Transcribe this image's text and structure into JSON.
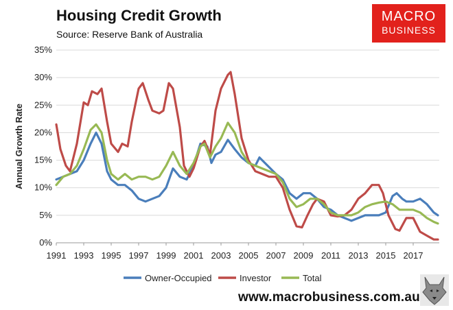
{
  "header": {
    "title": "Housing Credit Growth",
    "subtitle": "Source: Reserve Bank of Australia"
  },
  "brand": {
    "line1": "MACRO",
    "line2": "BUSINESS",
    "color": "#e2211c"
  },
  "footer": {
    "url": "www.macrobusiness.com.au",
    "icon": "wolf-icon"
  },
  "chart_data": {
    "type": "line",
    "title": "Housing Credit Growth",
    "ylabel": "Annual Growth Rate",
    "xlabel": "",
    "xlim": [
      1991,
      2018.9
    ],
    "ylim": [
      0,
      35
    ],
    "x_ticks": [
      1991,
      1993,
      1995,
      1997,
      1999,
      2001,
      2003,
      2005,
      2007,
      2009,
      2011,
      2013,
      2015,
      2017
    ],
    "x_tick_labels": [
      "1991",
      "1993",
      "1995",
      "1997",
      "1999",
      "2001",
      "2003",
      "2005",
      "2007",
      "2009",
      "2011",
      "2013",
      "2015",
      "2017"
    ],
    "y_ticks": [
      0,
      5,
      10,
      15,
      20,
      25,
      30,
      35
    ],
    "y_tick_labels": [
      "0%",
      "5%",
      "10%",
      "15%",
      "20%",
      "25%",
      "30%",
      "35%"
    ],
    "grid": "horizontal",
    "legend": "bottom",
    "series": [
      {
        "name": "Owner-Occupied",
        "color": "#4a7ebb",
        "points": [
          [
            1991,
            11.5
          ],
          [
            1991.5,
            12
          ],
          [
            1992,
            12.5
          ],
          [
            1992.5,
            13
          ],
          [
            1993,
            15
          ],
          [
            1993.5,
            18
          ],
          [
            1993.9,
            20
          ],
          [
            1994.3,
            18
          ],
          [
            1994.7,
            13
          ],
          [
            1995,
            11.5
          ],
          [
            1995.5,
            10.5
          ],
          [
            1996,
            10.5
          ],
          [
            1996.5,
            9.5
          ],
          [
            1997,
            8
          ],
          [
            1997.5,
            7.5
          ],
          [
            1998,
            8
          ],
          [
            1998.5,
            8.5
          ],
          [
            1999,
            10
          ],
          [
            1999.5,
            13.5
          ],
          [
            2000,
            12
          ],
          [
            2000.5,
            11.5
          ],
          [
            2001,
            14
          ],
          [
            2001.5,
            18
          ],
          [
            2002,
            17.5
          ],
          [
            2002.3,
            14.5
          ],
          [
            2002.6,
            16
          ],
          [
            2003,
            16.5
          ],
          [
            2003.5,
            18.7
          ],
          [
            2004,
            17
          ],
          [
            2004.5,
            15.5
          ],
          [
            2005,
            14.5
          ],
          [
            2005.5,
            14
          ],
          [
            2005.8,
            15.5
          ],
          [
            2006.2,
            14.5
          ],
          [
            2006.6,
            13.5
          ],
          [
            2007,
            12.5
          ],
          [
            2007.5,
            11.5
          ],
          [
            2008,
            9
          ],
          [
            2008.5,
            8
          ],
          [
            2009,
            9
          ],
          [
            2009.5,
            9
          ],
          [
            2010,
            8
          ],
          [
            2010.5,
            6.5
          ],
          [
            2011,
            6
          ],
          [
            2011.5,
            5
          ],
          [
            2012,
            4.5
          ],
          [
            2012.5,
            4
          ],
          [
            2013,
            4.5
          ],
          [
            2013.5,
            5
          ],
          [
            2014,
            5
          ],
          [
            2014.5,
            5
          ],
          [
            2015,
            5.5
          ],
          [
            2015.5,
            8.5
          ],
          [
            2015.8,
            9
          ],
          [
            2016.2,
            8
          ],
          [
            2016.5,
            7.5
          ],
          [
            2017,
            7.5
          ],
          [
            2017.5,
            8
          ],
          [
            2018,
            7
          ],
          [
            2018.5,
            5.5
          ],
          [
            2018.8,
            5
          ]
        ]
      },
      {
        "name": "Investor",
        "color": "#be4b48",
        "points": [
          [
            1991,
            21.5
          ],
          [
            1991.3,
            17
          ],
          [
            1991.7,
            14
          ],
          [
            1992,
            13
          ],
          [
            1992.5,
            18
          ],
          [
            1993,
            25.5
          ],
          [
            1993.3,
            25
          ],
          [
            1993.6,
            27.5
          ],
          [
            1994,
            27
          ],
          [
            1994.3,
            28
          ],
          [
            1994.7,
            22
          ],
          [
            1995,
            18
          ],
          [
            1995.5,
            16.5
          ],
          [
            1995.8,
            18
          ],
          [
            1996.2,
            17.5
          ],
          [
            1996.5,
            22
          ],
          [
            1997,
            28
          ],
          [
            1997.3,
            29
          ],
          [
            1997.7,
            26
          ],
          [
            1998,
            24
          ],
          [
            1998.5,
            23.5
          ],
          [
            1998.8,
            24
          ],
          [
            1999.2,
            29
          ],
          [
            1999.5,
            28
          ],
          [
            2000,
            21
          ],
          [
            2000.3,
            14
          ],
          [
            2000.7,
            12
          ],
          [
            2001,
            13.5
          ],
          [
            2001.5,
            17.5
          ],
          [
            2001.8,
            18.5
          ],
          [
            2002.2,
            16
          ],
          [
            2002.6,
            24
          ],
          [
            2003,
            28
          ],
          [
            2003.5,
            30.5
          ],
          [
            2003.7,
            31
          ],
          [
            2004,
            27
          ],
          [
            2004.5,
            19
          ],
          [
            2005,
            15
          ],
          [
            2005.5,
            13
          ],
          [
            2006,
            12.5
          ],
          [
            2006.5,
            12
          ],
          [
            2007,
            12
          ],
          [
            2007.5,
            10
          ],
          [
            2008,
            6
          ],
          [
            2008.5,
            3
          ],
          [
            2008.9,
            2.8
          ],
          [
            2009.3,
            5
          ],
          [
            2009.7,
            7
          ],
          [
            2010,
            8
          ],
          [
            2010.5,
            7.5
          ],
          [
            2011,
            5
          ],
          [
            2011.5,
            4.8
          ],
          [
            2012,
            5
          ],
          [
            2012.5,
            6
          ],
          [
            2013,
            8
          ],
          [
            2013.5,
            9
          ],
          [
            2014,
            10.5
          ],
          [
            2014.5,
            10.5
          ],
          [
            2014.8,
            9
          ],
          [
            2015.2,
            5
          ],
          [
            2015.7,
            2.5
          ],
          [
            2016,
            2.2
          ],
          [
            2016.5,
            4.5
          ],
          [
            2017,
            4.5
          ],
          [
            2017.5,
            2
          ],
          [
            2018,
            1.3
          ],
          [
            2018.5,
            0.6
          ],
          [
            2018.8,
            0.6
          ]
        ]
      },
      {
        "name": "Total",
        "color": "#98b954",
        "points": [
          [
            1991,
            10.5
          ],
          [
            1991.5,
            12
          ],
          [
            1992,
            12.5
          ],
          [
            1992.5,
            14
          ],
          [
            1993,
            17
          ],
          [
            1993.5,
            20.5
          ],
          [
            1993.9,
            21.5
          ],
          [
            1994.3,
            20
          ],
          [
            1994.7,
            15
          ],
          [
            1995,
            12.5
          ],
          [
            1995.5,
            11.5
          ],
          [
            1996,
            12.5
          ],
          [
            1996.5,
            11.5
          ],
          [
            1997,
            12
          ],
          [
            1997.5,
            12
          ],
          [
            1998,
            11.5
          ],
          [
            1998.5,
            12
          ],
          [
            1999,
            14
          ],
          [
            1999.5,
            16.5
          ],
          [
            2000,
            14
          ],
          [
            2000.5,
            12.5
          ],
          [
            2001,
            14.5
          ],
          [
            2001.5,
            17.5
          ],
          [
            2001.8,
            18
          ],
          [
            2002.2,
            15.5
          ],
          [
            2002.6,
            17.5
          ],
          [
            2003,
            19
          ],
          [
            2003.5,
            21.8
          ],
          [
            2004,
            20
          ],
          [
            2004.5,
            16.5
          ],
          [
            2005,
            14.5
          ],
          [
            2005.5,
            14
          ],
          [
            2006,
            13.5
          ],
          [
            2006.5,
            13
          ],
          [
            2007,
            12.5
          ],
          [
            2007.5,
            11
          ],
          [
            2008,
            8
          ],
          [
            2008.5,
            6.5
          ],
          [
            2009,
            7
          ],
          [
            2009.5,
            8
          ],
          [
            2010,
            8
          ],
          [
            2010.5,
            7
          ],
          [
            2011,
            5.5
          ],
          [
            2011.5,
            5
          ],
          [
            2012,
            5
          ],
          [
            2012.5,
            5
          ],
          [
            2013,
            5.5
          ],
          [
            2013.5,
            6.5
          ],
          [
            2014,
            7
          ],
          [
            2014.5,
            7.3
          ],
          [
            2015,
            7.5
          ],
          [
            2015.5,
            7
          ],
          [
            2016,
            6
          ],
          [
            2016.5,
            6
          ],
          [
            2017,
            6
          ],
          [
            2017.5,
            5.5
          ],
          [
            2018,
            4.5
          ],
          [
            2018.5,
            3.8
          ],
          [
            2018.8,
            3.5
          ]
        ]
      }
    ]
  }
}
